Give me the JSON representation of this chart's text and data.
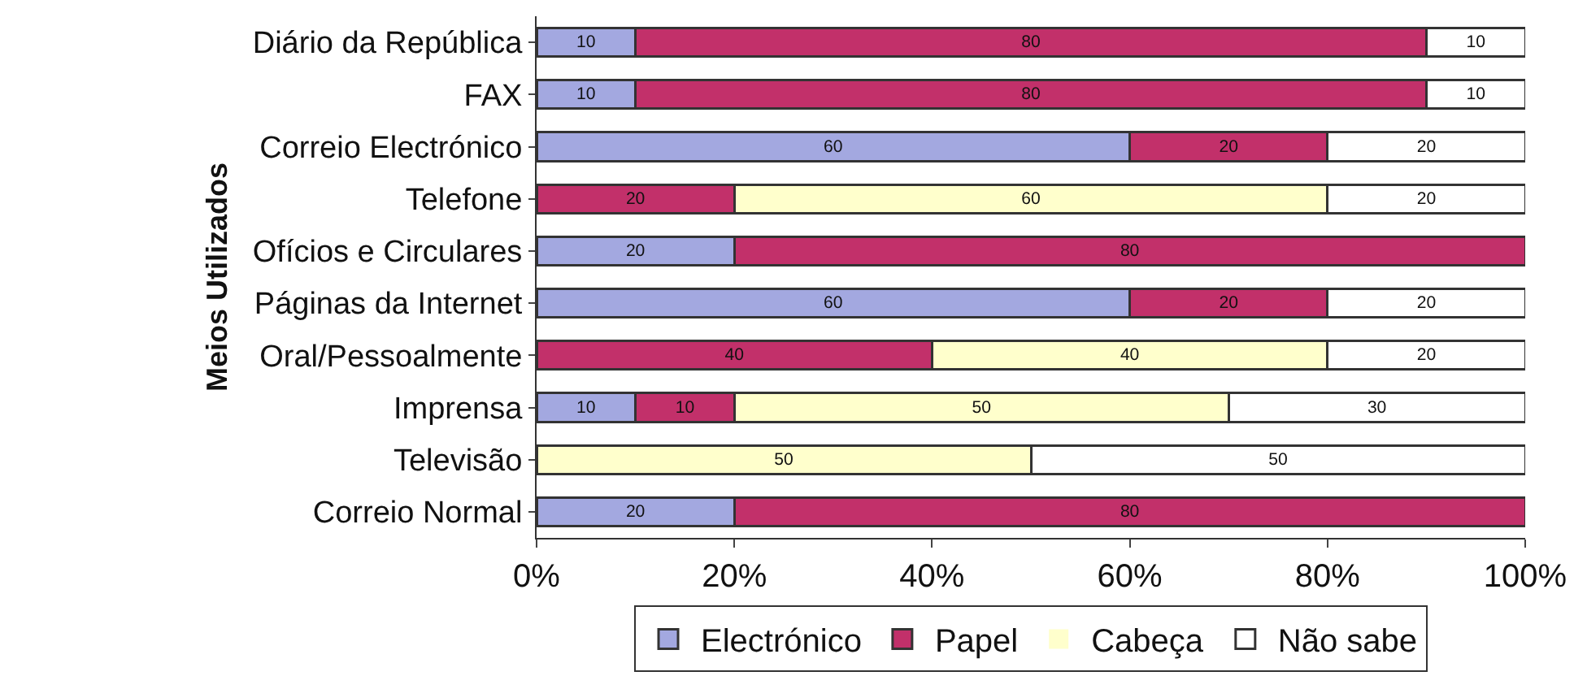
{
  "chart_data": {
    "type": "bar",
    "orientation": "horizontal",
    "stacked": true,
    "ylabel": "Meios Utilizados",
    "categories": [
      "Diário da República",
      "FAX",
      "Correio Electrónico",
      "Telefone",
      "Ofícios e Circulares",
      "Páginas da Internet",
      "Oral/Pessoalmente",
      "Imprensa",
      "Televisão",
      "Correio Normal"
    ],
    "series": [
      {
        "name": "Electrónico",
        "color": "#a3a8e0",
        "values": [
          10,
          10,
          60,
          0,
          20,
          60,
          0,
          10,
          0,
          20
        ],
        "value_labels": [
          "10",
          "10",
          "60",
          null,
          "20",
          "60",
          null,
          "10",
          null,
          "20"
        ]
      },
      {
        "name": "Papel",
        "color": "#c2306a",
        "values": [
          80,
          80,
          20,
          20,
          80,
          20,
          40,
          10,
          0,
          80
        ],
        "value_labels": [
          "80",
          "80",
          "20",
          "20",
          "80",
          "20",
          "40",
          "10",
          null,
          "80"
        ]
      },
      {
        "name": "Cabeça",
        "color": "#ffffcc",
        "values": [
          0,
          0,
          0,
          60,
          0,
          0,
          40,
          50,
          50,
          0
        ],
        "value_labels": [
          null,
          null,
          null,
          "60",
          null,
          null,
          "40",
          "50",
          "50",
          null
        ]
      },
      {
        "name": "Não sabe",
        "color": "#ffffff",
        "values": [
          10,
          10,
          20,
          20,
          0,
          20,
          20,
          30,
          50,
          0
        ],
        "value_labels": [
          "10",
          "10",
          "20",
          "20",
          null,
          "20",
          "20",
          "30",
          "50",
          null
        ]
      }
    ],
    "xlim": [
      0,
      100
    ],
    "xticks": [
      {
        "value": 0,
        "label": "0%"
      },
      {
        "value": 20,
        "label": "20%"
      },
      {
        "value": 40,
        "label": "40%"
      },
      {
        "value": 60,
        "label": "60%"
      },
      {
        "value": 80,
        "label": "80%"
      },
      {
        "value": 100,
        "label": "100%"
      }
    ],
    "grid": false,
    "legend": "bottom"
  }
}
